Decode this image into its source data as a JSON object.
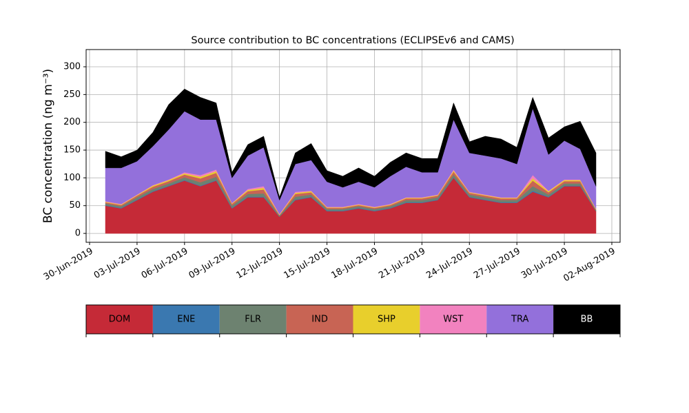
{
  "chart_data": {
    "type": "stacked-area",
    "title": "Source contribution to BC concentrations (ECLIPSEv6 and CAMS)",
    "y_label": "BC concentration (ng m⁻³)",
    "x": [
      "2019-07-01",
      "2019-07-02",
      "2019-07-03",
      "2019-07-04",
      "2019-07-05",
      "2019-07-06",
      "2019-07-07",
      "2019-07-08",
      "2019-07-09",
      "2019-07-10",
      "2019-07-11",
      "2019-07-12",
      "2019-07-13",
      "2019-07-14",
      "2019-07-15",
      "2019-07-16",
      "2019-07-17",
      "2019-07-18",
      "2019-07-19",
      "2019-07-20",
      "2019-07-21",
      "2019-07-22",
      "2019-07-23",
      "2019-07-24",
      "2019-07-25",
      "2019-07-26",
      "2019-07-27",
      "2019-07-28",
      "2019-07-29",
      "2019-07-30",
      "2019-07-31",
      "2019-08-01"
    ],
    "series": [
      {
        "name": "DOM",
        "color": "#c52a37",
        "values": [
          50,
          45,
          60,
          75,
          85,
          95,
          85,
          95,
          45,
          65,
          65,
          30,
          60,
          65,
          40,
          40,
          45,
          40,
          45,
          55,
          55,
          60,
          100,
          65,
          60,
          55,
          55,
          75,
          65,
          85,
          85,
          40
        ]
      },
      {
        "name": "ENE",
        "color": "#3a78b0",
        "values": [
          1,
          1,
          1,
          1,
          1,
          1,
          1,
          1,
          1,
          1,
          1,
          0,
          1,
          1,
          1,
          1,
          1,
          1,
          1,
          1,
          1,
          1,
          1,
          1,
          1,
          1,
          1,
          2,
          1,
          1,
          1,
          0
        ]
      },
      {
        "name": "FLR",
        "color": "#6d8270",
        "values": [
          3,
          3,
          4,
          4,
          4,
          5,
          6,
          6,
          4,
          5,
          6,
          2,
          5,
          4,
          3,
          3,
          3,
          3,
          3,
          4,
          4,
          4,
          5,
          4,
          4,
          4,
          4,
          8,
          4,
          4,
          4,
          2
        ]
      },
      {
        "name": "IND",
        "color": "#c86454",
        "values": [
          2,
          2,
          3,
          4,
          4,
          5,
          7,
          7,
          3,
          5,
          7,
          1,
          5,
          4,
          2,
          2,
          2,
          2,
          2,
          3,
          3,
          3,
          5,
          3,
          3,
          3,
          3,
          10,
          4,
          4,
          4,
          1
        ]
      },
      {
        "name": "SHP",
        "color": "#e8cf2c",
        "values": [
          1,
          1,
          1,
          2,
          2,
          2,
          3,
          3,
          1,
          2,
          3,
          1,
          2,
          2,
          1,
          1,
          1,
          1,
          1,
          1,
          1,
          1,
          2,
          1,
          1,
          1,
          1,
          4,
          2,
          2,
          2,
          1
        ]
      },
      {
        "name": "WST",
        "color": "#f282bf",
        "values": [
          1,
          1,
          1,
          1,
          1,
          2,
          3,
          3,
          1,
          2,
          3,
          1,
          2,
          1,
          1,
          1,
          1,
          1,
          1,
          1,
          1,
          1,
          2,
          1,
          1,
          1,
          1,
          6,
          1,
          1,
          1,
          1
        ]
      },
      {
        "name": "TRA",
        "color": "#9370db",
        "values": [
          60,
          65,
          60,
          70,
          90,
          110,
          100,
          90,
          45,
          60,
          70,
          25,
          50,
          55,
          45,
          35,
          40,
          35,
          50,
          55,
          45,
          40,
          90,
          70,
          70,
          70,
          60,
          120,
          65,
          70,
          55,
          40
        ]
      },
      {
        "name": "BB",
        "color": "#000000",
        "values": [
          30,
          20,
          20,
          25,
          45,
          40,
          40,
          30,
          10,
          20,
          20,
          5,
          20,
          30,
          20,
          20,
          25,
          20,
          25,
          25,
          25,
          25,
          30,
          20,
          35,
          35,
          30,
          20,
          30,
          25,
          50,
          60
        ]
      }
    ],
    "xlim": [
      "2019-06-30",
      "2019-08-02"
    ],
    "xticks": [
      {
        "value": "2019-06-30",
        "label": "30-Jun-2019"
      },
      {
        "value": "2019-07-03",
        "label": "03-Jul-2019"
      },
      {
        "value": "2019-07-06",
        "label": "06-Jul-2019"
      },
      {
        "value": "2019-07-09",
        "label": "09-Jul-2019"
      },
      {
        "value": "2019-07-12",
        "label": "12-Jul-2019"
      },
      {
        "value": "2019-07-15",
        "label": "15-Jul-2019"
      },
      {
        "value": "2019-07-18",
        "label": "18-Jul-2019"
      },
      {
        "value": "2019-07-21",
        "label": "21-Jul-2019"
      },
      {
        "value": "2019-07-24",
        "label": "24-Jul-2019"
      },
      {
        "value": "2019-07-27",
        "label": "27-Jul-2019"
      },
      {
        "value": "2019-07-30",
        "label": "30-Jul-2019"
      },
      {
        "value": "2019-08-02",
        "label": "02-Aug-2019"
      }
    ],
    "ylim": [
      -16,
      331
    ],
    "yticks": [
      0,
      50,
      100,
      150,
      200,
      250,
      300
    ],
    "grid": true
  }
}
